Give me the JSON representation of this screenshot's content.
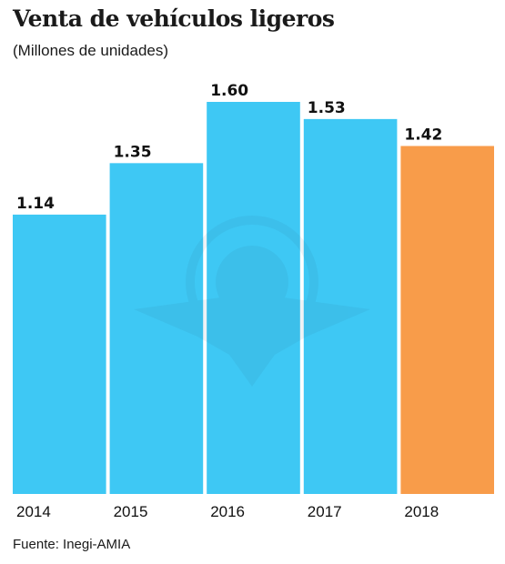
{
  "header": {
    "title": "Venta de vehículos ligeros",
    "subtitle": "(Millones de unidades)"
  },
  "footer": {
    "source": "Fuente: Inegi-AMIA"
  },
  "watermark": {
    "icon": "eagle-emblem-watermark"
  },
  "chart_data": {
    "type": "bar",
    "title": "Venta de vehículos ligeros",
    "subtitle": "(Millones de unidades)",
    "categories": [
      "2014",
      "2015",
      "2016",
      "2017",
      "2018"
    ],
    "values": [
      1.14,
      1.35,
      1.6,
      1.53,
      1.42
    ],
    "value_labels": [
      "1.14",
      "1.35",
      "1.60",
      "1.53",
      "1.42"
    ],
    "bar_colors": [
      "#3ec8f4",
      "#3ec8f4",
      "#3ec8f4",
      "#3ec8f4",
      "#f89c4a"
    ],
    "highlight_color": "#f89c4a",
    "base_color": "#3ec8f4",
    "ylim": [
      0,
      1.6
    ],
    "grid": false,
    "legend": "none",
    "xlabel": "",
    "ylabel": ""
  }
}
